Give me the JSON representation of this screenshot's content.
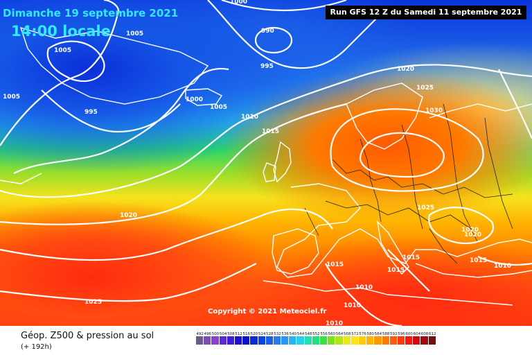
{
  "header": {
    "date_label": "Dimanche 19 septembre 2021",
    "time_label": "14:00 locale",
    "run_label": "Run GFS 12 Z du Samedi 11 septembre 2021"
  },
  "copyright": "Copyright © 2021 Meteociel.fr",
  "footer": {
    "title": "Géop. Z500 & pression au sol",
    "subtitle": "(+ 192h)"
  },
  "isobar_labels": [
    {
      "text": "1000"
    },
    {
      "text": "1005"
    },
    {
      "text": "990"
    },
    {
      "text": "1005"
    },
    {
      "text": "995"
    },
    {
      "text": "1005"
    },
    {
      "text": "995"
    },
    {
      "text": "1000"
    },
    {
      "text": "1005"
    },
    {
      "text": "1010"
    },
    {
      "text": "1015"
    },
    {
      "text": "1020"
    },
    {
      "text": "1025"
    },
    {
      "text": "1030"
    },
    {
      "text": "1025"
    },
    {
      "text": "1020"
    },
    {
      "text": "1020"
    },
    {
      "text": "1015"
    },
    {
      "text": "1015"
    },
    {
      "text": "1015"
    },
    {
      "text": "1010"
    },
    {
      "text": "1010"
    },
    {
      "text": "1010"
    },
    {
      "text": "1010"
    },
    {
      "text": "1015"
    },
    {
      "text": "1020"
    },
    {
      "text": "1025"
    }
  ],
  "scale": [
    {
      "value": "492",
      "color": "#6a5a8a"
    },
    {
      "value": "496",
      "color": "#7a4fb0"
    },
    {
      "value": "500",
      "color": "#8a3fd0"
    },
    {
      "value": "504",
      "color": "#5a2ad8"
    },
    {
      "value": "508",
      "color": "#3a1ed8"
    },
    {
      "value": "512",
      "color": "#1a12d0"
    },
    {
      "value": "516",
      "color": "#0a10c8"
    },
    {
      "value": "520",
      "color": "#0a2ad8"
    },
    {
      "value": "524",
      "color": "#0a44e0"
    },
    {
      "value": "528",
      "color": "#1a5ee6"
    },
    {
      "value": "532",
      "color": "#2a7aee"
    },
    {
      "value": "536",
      "color": "#2a98f2"
    },
    {
      "value": "540",
      "color": "#2ab4f0"
    },
    {
      "value": "544",
      "color": "#28d0e8"
    },
    {
      "value": "548",
      "color": "#22e0b4"
    },
    {
      "value": "552",
      "color": "#22e080"
    },
    {
      "value": "556",
      "color": "#3ae040"
    },
    {
      "value": "560",
      "color": "#7ae020"
    },
    {
      "value": "564",
      "color": "#b4e41a"
    },
    {
      "value": "568",
      "color": "#e8e61c"
    },
    {
      "value": "572",
      "color": "#ffe21c"
    },
    {
      "value": "576",
      "color": "#ffcc0a"
    },
    {
      "value": "580",
      "color": "#ffb400"
    },
    {
      "value": "584",
      "color": "#ff9800"
    },
    {
      "value": "588",
      "color": "#ff7a00"
    },
    {
      "value": "592",
      "color": "#ff5a10"
    },
    {
      "value": "596",
      "color": "#ff3a10"
    },
    {
      "value": "600",
      "color": "#f01a10"
    },
    {
      "value": "604",
      "color": "#d00a10"
    },
    {
      "value": "608",
      "color": "#a00a10"
    },
    {
      "value": "612",
      "color": "#701010"
    }
  ]
}
